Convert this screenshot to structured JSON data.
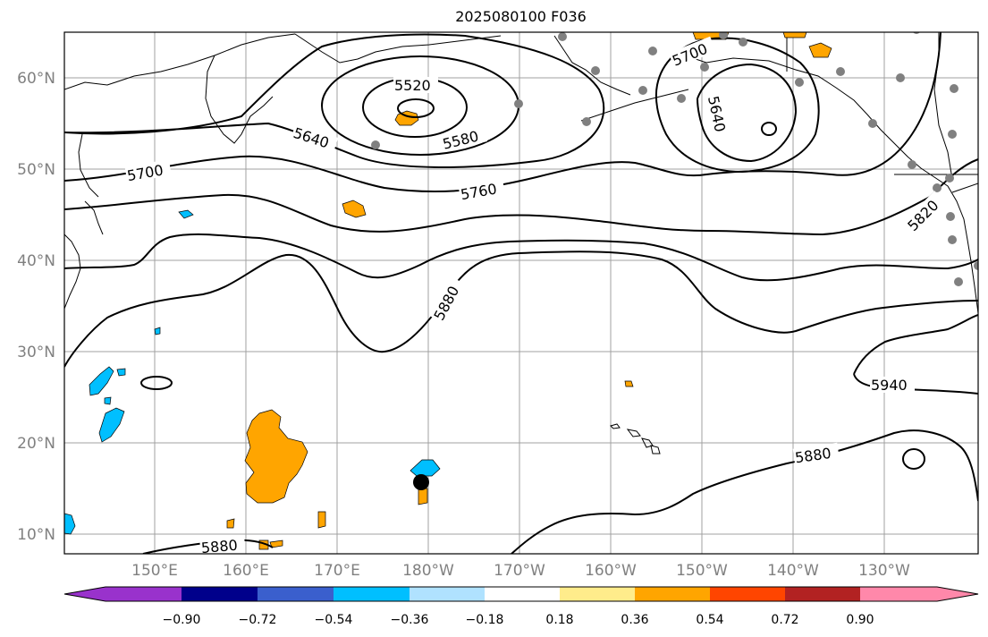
{
  "title": "2025080100 F036",
  "lat_ticks": [
    "60°N",
    "50°N",
    "40°N",
    "30°N",
    "20°N",
    "10°N"
  ],
  "lon_ticks": [
    "150°E",
    "160°E",
    "170°E",
    "180°W",
    "170°W",
    "160°W",
    "150°W",
    "140°W",
    "130°W"
  ],
  "contour_labels": [
    "5520",
    "5580",
    "5640",
    "5700",
    "5760",
    "5880",
    "5640",
    "5700",
    "5820",
    "5940",
    "5880",
    "5880"
  ],
  "colorbar": {
    "ticks": [
      "−0.90",
      "−0.72",
      "−0.54",
      "−0.36",
      "−0.18",
      "0.18",
      "0.36",
      "0.54",
      "0.72",
      "0.90"
    ],
    "colors": [
      "#9932cc",
      "#00008b",
      "#3a5fcd",
      "#00bfff",
      "#b0e2ff",
      "#ffffff",
      "#ffec8b",
      "#ffa500",
      "#ff4500",
      "#b22222",
      "#ff88aa"
    ]
  },
  "colors": {
    "positive_anomaly": "#ffa500",
    "negative_anomaly": "#00bfff",
    "station": "#808080",
    "gridline": "#a0a0a0",
    "contour": "#000000"
  }
}
